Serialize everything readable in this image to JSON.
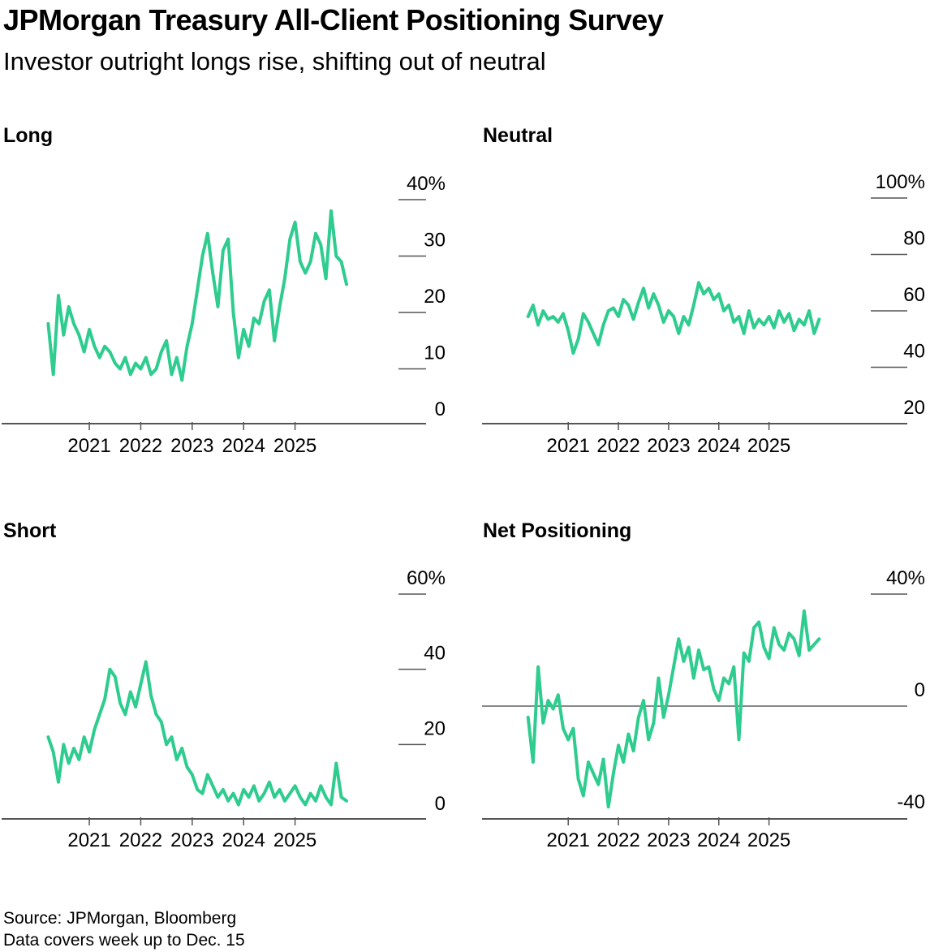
{
  "title": "JPMorgan Treasury All-Client Positioning Survey",
  "subtitle": "Investor outright longs rise, shifting out of neutral",
  "footer": {
    "source": "Source: JPMorgan, Bloomberg",
    "note": "Data covers week up to Dec. 15"
  },
  "colors": {
    "line": "#2ecc8f",
    "axis": "#555555",
    "zero": "#888888"
  },
  "chart_data": [
    {
      "type": "line",
      "title": "Long",
      "x_ticks": [
        "2021",
        "2022",
        "2023",
        "2024",
        "2025"
      ],
      "y_ticks": [
        "0",
        "10",
        "20",
        "30",
        "40%"
      ],
      "ylim": [
        0,
        40
      ],
      "xlim": [
        2019.8,
        2026.3
      ],
      "series": [
        {
          "x": [
            2020.2,
            2020.3,
            2020.4,
            2020.5,
            2020.6,
            2020.7,
            2020.8,
            2020.9,
            2021.0,
            2021.1,
            2021.2,
            2021.3,
            2021.4,
            2021.5,
            2021.6,
            2021.7,
            2021.8,
            2021.9,
            2022.0,
            2022.1,
            2022.2,
            2022.3,
            2022.4,
            2022.5,
            2022.6,
            2022.7,
            2022.8,
            2022.9,
            2023.0,
            2023.1,
            2023.2,
            2023.3,
            2023.4,
            2023.5,
            2023.6,
            2023.7,
            2023.8,
            2023.9,
            2024.0,
            2024.1,
            2024.2,
            2024.3,
            2024.4,
            2024.5,
            2024.6,
            2024.7,
            2024.8,
            2024.9,
            2025.0,
            2025.1,
            2025.2,
            2025.3,
            2025.4,
            2025.5,
            2025.6,
            2025.7,
            2025.8,
            2025.9,
            2026.0
          ],
          "y": [
            18,
            9,
            23,
            16,
            21,
            18,
            16,
            13,
            17,
            14,
            12,
            14,
            13,
            11,
            10,
            12,
            9,
            11,
            10,
            12,
            9,
            10,
            13,
            15,
            9,
            12,
            8,
            14,
            18,
            24,
            30,
            34,
            27,
            21,
            31,
            33,
            20,
            12,
            17,
            14,
            19,
            18,
            22,
            24,
            15,
            21,
            26,
            33,
            36,
            29,
            27,
            29,
            34,
            32,
            26,
            38,
            30,
            29,
            25
          ],
          "ymin": 0,
          "ymax": 40
        }
      ]
    },
    {
      "type": "line",
      "title": "Neutral",
      "x_ticks": [
        "2021",
        "2022",
        "2023",
        "2024",
        "2025"
      ],
      "y_ticks": [
        "20",
        "40",
        "60",
        "80",
        "100%"
      ],
      "ylim": [
        20,
        100
      ],
      "xlim": [
        2019.8,
        2026.3
      ],
      "series": [
        {
          "x": [
            2020.2,
            2020.3,
            2020.4,
            2020.5,
            2020.6,
            2020.7,
            2020.8,
            2020.9,
            2021.0,
            2021.1,
            2021.2,
            2021.3,
            2021.4,
            2021.5,
            2021.6,
            2021.7,
            2021.8,
            2021.9,
            2022.0,
            2022.1,
            2022.2,
            2022.3,
            2022.4,
            2022.5,
            2022.6,
            2022.7,
            2022.8,
            2022.9,
            2023.0,
            2023.1,
            2023.2,
            2023.3,
            2023.4,
            2023.5,
            2023.6,
            2023.7,
            2023.8,
            2023.9,
            2024.0,
            2024.1,
            2024.2,
            2024.3,
            2024.4,
            2024.5,
            2024.6,
            2024.7,
            2024.8,
            2024.9,
            2025.0,
            2025.1,
            2025.2,
            2025.3,
            2025.4,
            2025.5,
            2025.6,
            2025.7,
            2025.8,
            2025.9,
            2026.0
          ],
          "y": [
            58,
            62,
            55,
            60,
            57,
            58,
            56,
            59,
            53,
            45,
            50,
            59,
            56,
            52,
            48,
            55,
            60,
            61,
            58,
            64,
            62,
            57,
            63,
            68,
            61,
            66,
            62,
            56,
            60,
            58,
            52,
            58,
            55,
            62,
            70,
            66,
            68,
            64,
            66,
            60,
            62,
            56,
            58,
            52,
            60,
            54,
            57,
            55,
            58,
            54,
            60,
            56,
            59,
            53,
            57,
            55,
            60,
            52,
            57
          ],
          "ymin": 20,
          "ymax": 100
        }
      ]
    },
    {
      "type": "line",
      "title": "Short",
      "x_ticks": [
        "2021",
        "2022",
        "2023",
        "2024",
        "2025"
      ],
      "y_ticks": [
        "0",
        "20",
        "40",
        "60%"
      ],
      "ylim": [
        0,
        60
      ],
      "xlim": [
        2019.8,
        2026.3
      ],
      "series": [
        {
          "x": [
            2020.2,
            2020.3,
            2020.4,
            2020.5,
            2020.6,
            2020.7,
            2020.8,
            2020.9,
            2021.0,
            2021.1,
            2021.2,
            2021.3,
            2021.4,
            2021.5,
            2021.6,
            2021.7,
            2021.8,
            2021.9,
            2022.0,
            2022.1,
            2022.2,
            2022.3,
            2022.4,
            2022.5,
            2022.6,
            2022.7,
            2022.8,
            2022.9,
            2023.0,
            2023.1,
            2023.2,
            2023.3,
            2023.4,
            2023.5,
            2023.6,
            2023.7,
            2023.8,
            2023.9,
            2024.0,
            2024.1,
            2024.2,
            2024.3,
            2024.4,
            2024.5,
            2024.6,
            2024.7,
            2024.8,
            2024.9,
            2025.0,
            2025.1,
            2025.2,
            2025.3,
            2025.4,
            2025.5,
            2025.6,
            2025.7,
            2025.8,
            2025.9,
            2026.0
          ],
          "y": [
            22,
            18,
            10,
            20,
            15,
            19,
            16,
            22,
            18,
            24,
            28,
            32,
            40,
            38,
            31,
            28,
            34,
            30,
            36,
            42,
            33,
            28,
            26,
            20,
            22,
            16,
            19,
            14,
            12,
            8,
            7,
            12,
            9,
            6,
            8,
            5,
            7,
            4,
            8,
            6,
            9,
            5,
            7,
            10,
            6,
            8,
            5,
            7,
            9,
            6,
            4,
            7,
            5,
            9,
            6,
            4,
            15,
            6,
            5
          ],
          "ymin": 0,
          "ymax": 60
        }
      ]
    },
    {
      "type": "line",
      "title": "Net Positioning",
      "x_ticks": [
        "2021",
        "2022",
        "2023",
        "2024",
        "2025"
      ],
      "y_ticks": [
        "-40",
        "0",
        "40%"
      ],
      "ylim": [
        -40,
        40
      ],
      "xlim": [
        2019.8,
        2026.3
      ],
      "series": [
        {
          "x": [
            2020.2,
            2020.3,
            2020.4,
            2020.5,
            2020.6,
            2020.7,
            2020.8,
            2020.9,
            2021.0,
            2021.1,
            2021.2,
            2021.3,
            2021.4,
            2021.5,
            2021.6,
            2021.7,
            2021.8,
            2021.9,
            2022.0,
            2022.1,
            2022.2,
            2022.3,
            2022.4,
            2022.5,
            2022.6,
            2022.7,
            2022.8,
            2022.9,
            2023.0,
            2023.1,
            2023.2,
            2023.3,
            2023.4,
            2023.5,
            2023.6,
            2023.7,
            2023.8,
            2023.9,
            2024.0,
            2024.1,
            2024.2,
            2024.3,
            2024.4,
            2024.5,
            2024.6,
            2024.7,
            2024.8,
            2024.9,
            2025.0,
            2025.1,
            2025.2,
            2025.3,
            2025.4,
            2025.5,
            2025.6,
            2025.7,
            2025.8,
            2025.9,
            2026.0
          ],
          "y": [
            -4,
            -20,
            14,
            -6,
            2,
            -1,
            4,
            -8,
            -12,
            -8,
            -26,
            -32,
            -20,
            -24,
            -28,
            -19,
            -36,
            -24,
            -14,
            -20,
            -10,
            -16,
            -4,
            2,
            -12,
            -6,
            10,
            -4,
            4,
            14,
            24,
            16,
            21,
            10,
            20,
            13,
            14,
            6,
            2,
            10,
            8,
            14,
            -12,
            19,
            16,
            28,
            30,
            21,
            17,
            28,
            22,
            20,
            26,
            24,
            18,
            34,
            20,
            22,
            24
          ],
          "ymin": -40,
          "ymax": 40
        }
      ]
    }
  ]
}
